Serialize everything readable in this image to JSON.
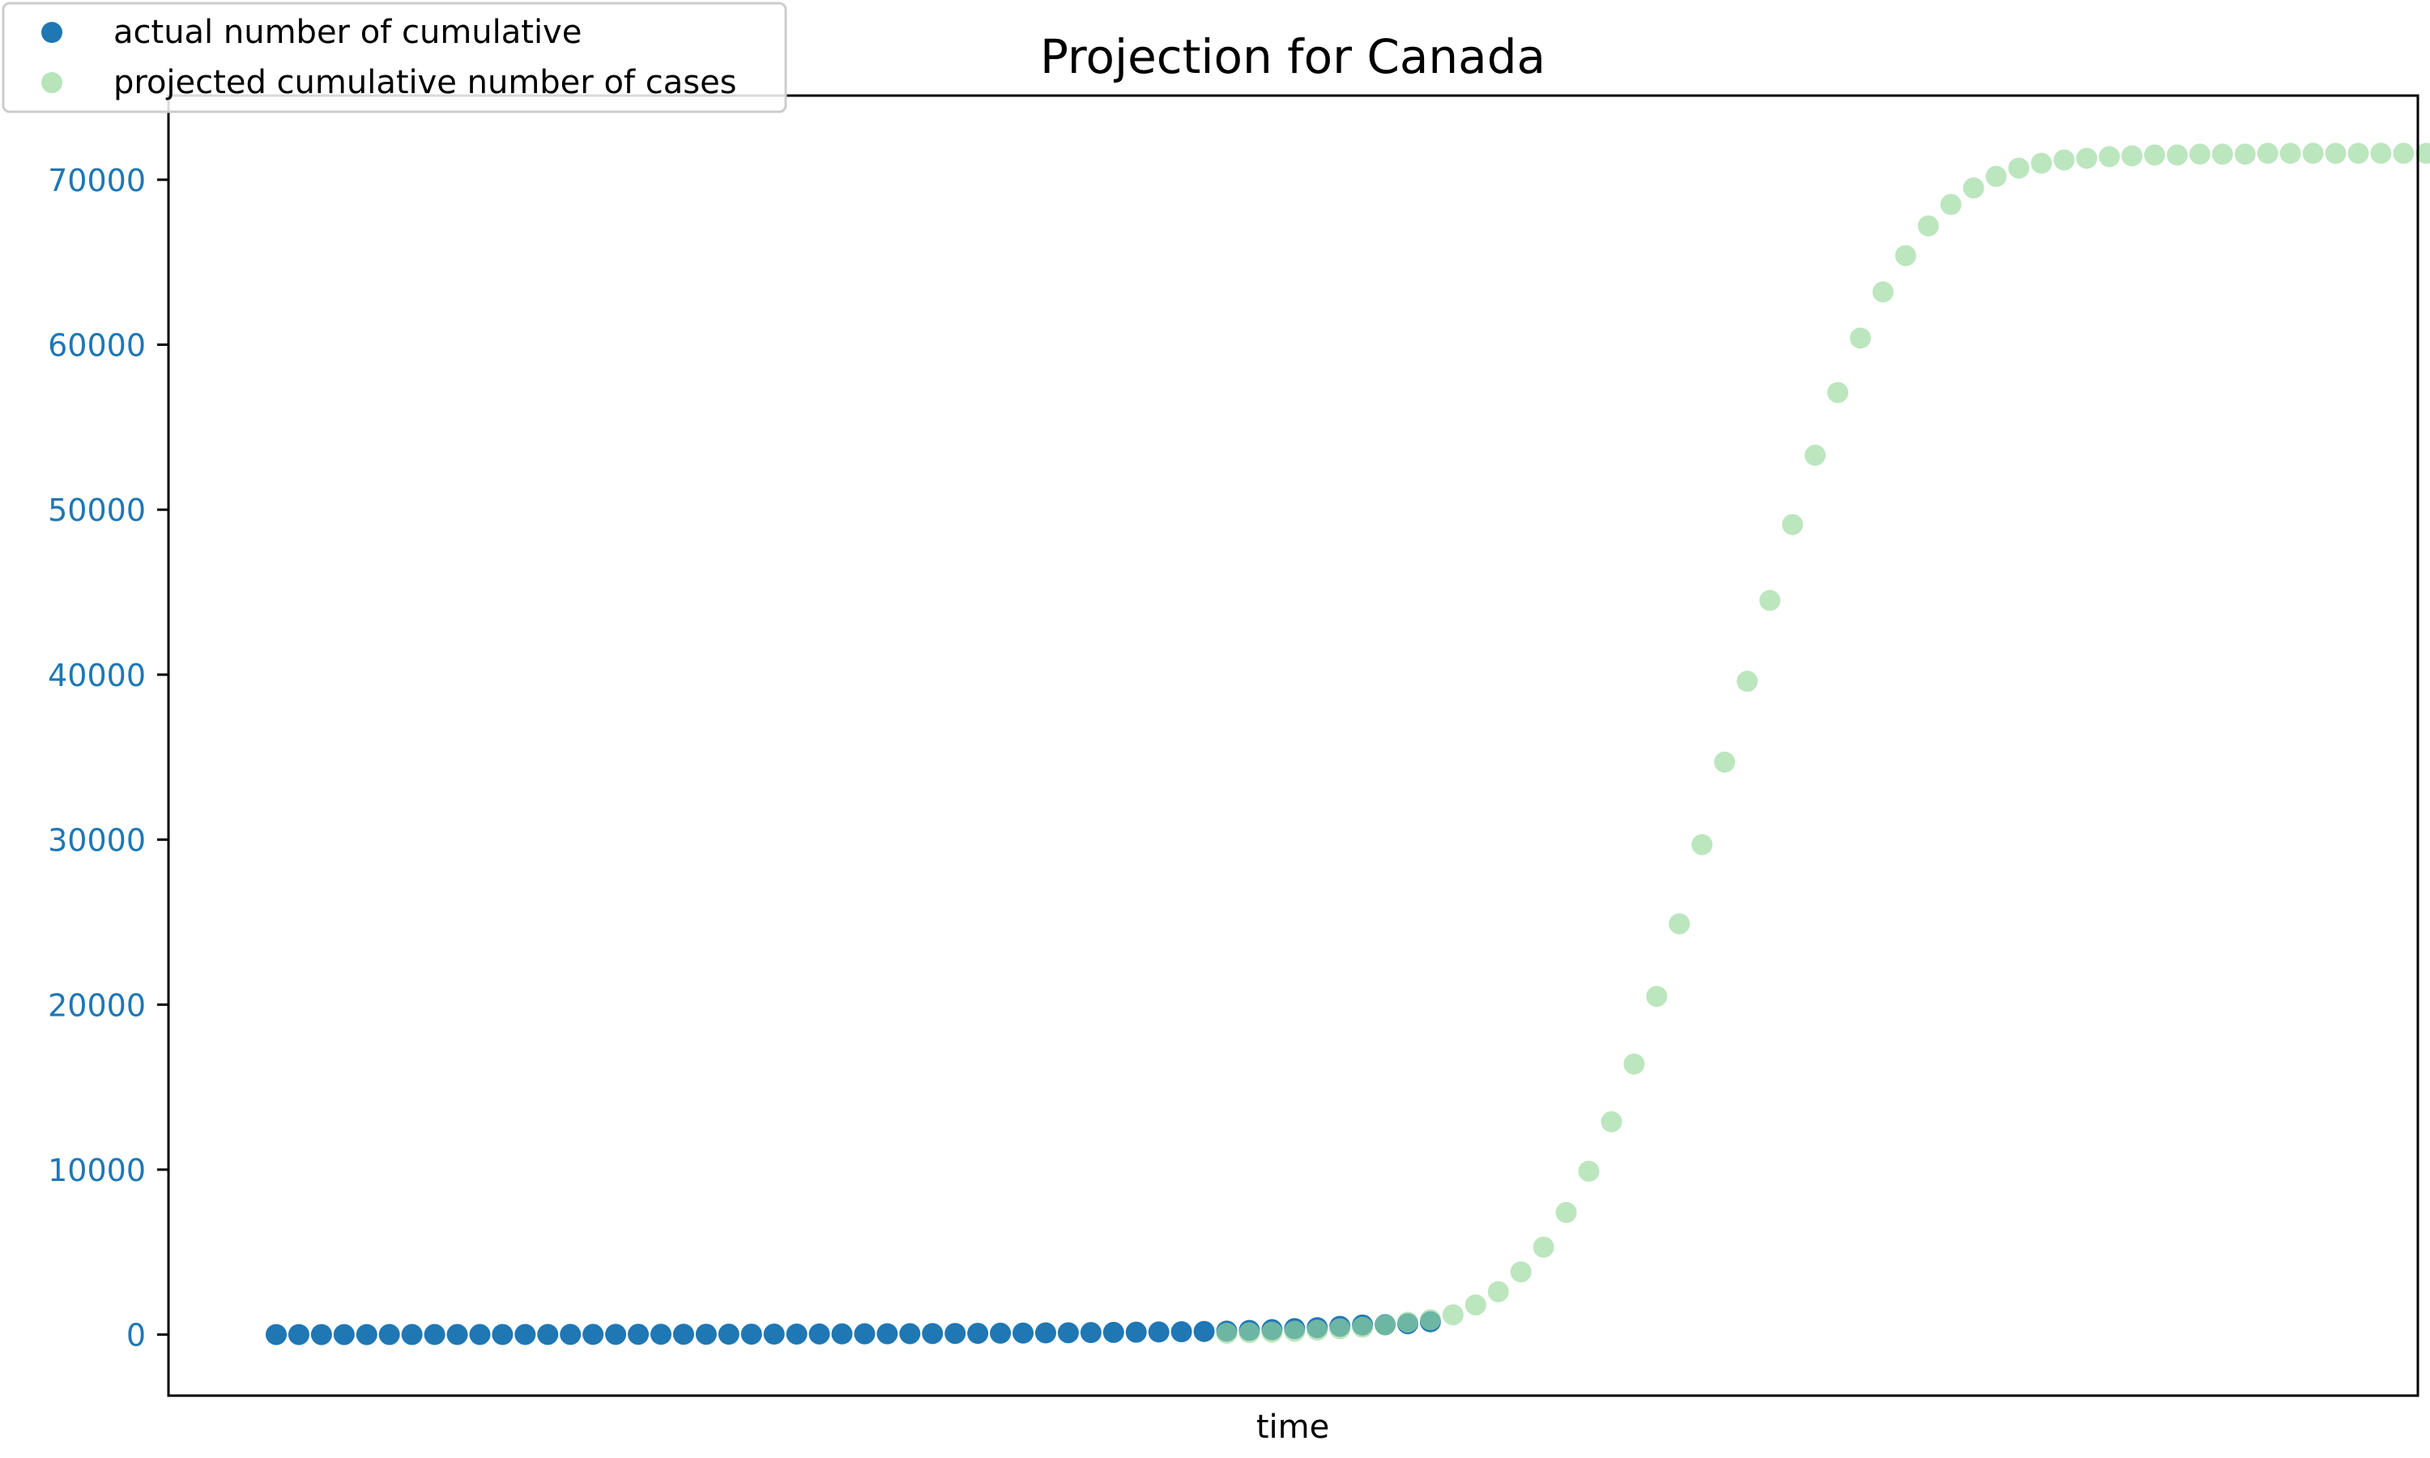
{
  "chart_data": {
    "type": "scatter",
    "title": "Projection for Canada",
    "xlabel": "time",
    "ylabel": "",
    "x_ticks_visible": false,
    "ylim": [
      -3700,
      75100
    ],
    "y_ticks": [
      0,
      10000,
      20000,
      30000,
      40000,
      50000,
      60000,
      70000
    ],
    "y_tick_labels": [
      "0",
      "10000",
      "20000",
      "30000",
      "40000",
      "50000",
      "60000",
      "70000"
    ],
    "grid": false,
    "legend_position": "top-left",
    "colors": {
      "actual": "#1f77b4",
      "projected": "#98d89b",
      "y_tick_label": "#1f77b4"
    },
    "series": [
      {
        "name": "actual number of cumulative",
        "x": [
          0,
          1,
          2,
          3,
          4,
          5,
          6,
          7,
          8,
          9,
          10,
          11,
          12,
          13,
          14,
          15,
          16,
          17,
          18,
          19,
          20,
          21,
          22,
          23,
          24,
          25,
          26,
          27,
          28,
          29,
          30,
          31,
          32,
          33,
          34,
          35,
          36,
          37,
          38,
          39,
          40,
          41,
          42,
          43,
          44,
          45,
          46,
          47,
          48,
          49,
          50,
          51
        ],
        "values": [
          2,
          2,
          3,
          3,
          3,
          4,
          4,
          5,
          5,
          6,
          7,
          8,
          9,
          10,
          12,
          14,
          16,
          18,
          20,
          22,
          25,
          28,
          31,
          34,
          38,
          42,
          47,
          52,
          58,
          64,
          70,
          77,
          85,
          94,
          103,
          112,
          122,
          133,
          145,
          158,
          172,
          190,
          210,
          250,
          300,
          360,
          420,
          500,
          580,
          600,
          660,
          780
        ]
      },
      {
        "name": "projected cumulative number of cases",
        "x": [
          42,
          43,
          44,
          45,
          46,
          47,
          48,
          49,
          50,
          51,
          52,
          53,
          54,
          55,
          56,
          57,
          58,
          59,
          60,
          61,
          62,
          63,
          64,
          65,
          66,
          67,
          68,
          69,
          70,
          71,
          72,
          73,
          74,
          75,
          76,
          77,
          78,
          79,
          80,
          81,
          82,
          83,
          84,
          85,
          86,
          87,
          88,
          89,
          90,
          91,
          92,
          93,
          94,
          95
        ],
        "values": [
          80,
          110,
          150,
          200,
          270,
          350,
          450,
          580,
          750,
          900,
          1200,
          1800,
          2600,
          3800,
          5300,
          7400,
          9900,
          12900,
          16400,
          20500,
          24900,
          29700,
          34700,
          39600,
          44500,
          49100,
          53300,
          57100,
          60400,
          63200,
          65400,
          67200,
          68500,
          69500,
          70200,
          70700,
          71000,
          71200,
          71300,
          71400,
          71450,
          71500,
          71500,
          71550,
          71550,
          71550,
          71600,
          71600,
          71600,
          71600,
          71600,
          71600,
          71600,
          71600
        ]
      }
    ]
  }
}
